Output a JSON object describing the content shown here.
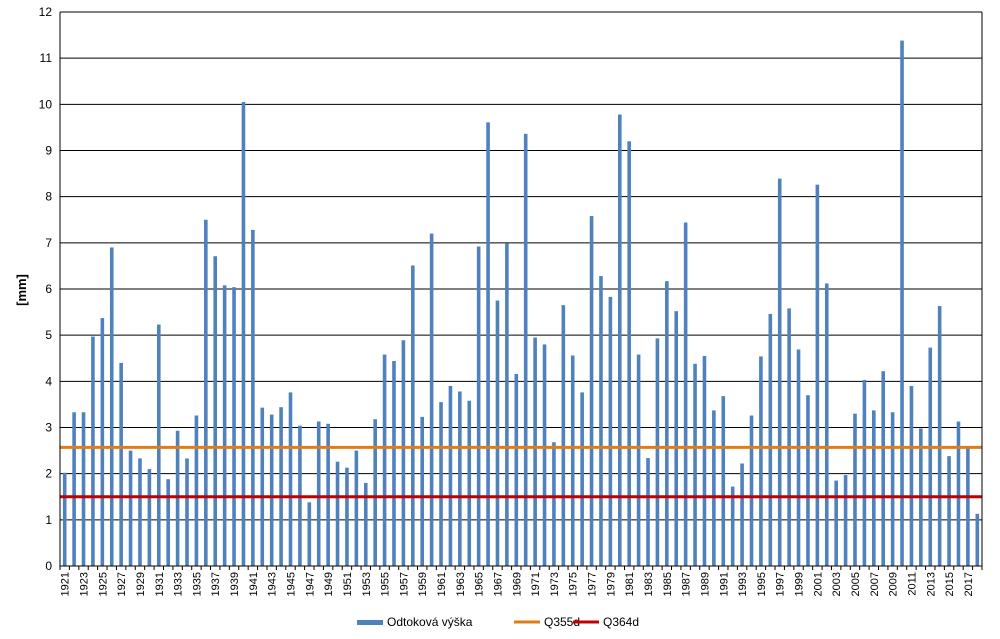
{
  "chart_data": {
    "type": "bar",
    "ylabel": "[mm]",
    "ylim": [
      0,
      12
    ],
    "yticks": [
      0,
      1,
      2,
      3,
      4,
      5,
      6,
      7,
      8,
      9,
      10,
      11,
      12
    ],
    "grid": true,
    "legend_position": "bottom",
    "categories": [
      1921,
      1922,
      1923,
      1924,
      1925,
      1926,
      1927,
      1928,
      1929,
      1930,
      1931,
      1932,
      1933,
      1934,
      1935,
      1936,
      1937,
      1938,
      1939,
      1940,
      1941,
      1942,
      1943,
      1944,
      1945,
      1946,
      1947,
      1948,
      1949,
      1950,
      1951,
      1952,
      1953,
      1954,
      1955,
      1956,
      1957,
      1958,
      1959,
      1960,
      1961,
      1962,
      1963,
      1964,
      1965,
      1966,
      1967,
      1968,
      1969,
      1970,
      1971,
      1972,
      1973,
      1974,
      1975,
      1976,
      1977,
      1978,
      1979,
      1980,
      1981,
      1982,
      1983,
      1984,
      1985,
      1986,
      1987,
      1988,
      1989,
      1990,
      1991,
      1992,
      1993,
      1994,
      1995,
      1996,
      1997,
      1998,
      1999,
      2000,
      2001,
      2002,
      2003,
      2004,
      2005,
      2006,
      2007,
      2008,
      2009,
      2010,
      2011,
      2012,
      2013,
      2014,
      2015,
      2016,
      2017,
      2018
    ],
    "tick_labels": [
      "1921",
      "1923",
      "1925",
      "1927",
      "1929",
      "1931",
      "1933",
      "1935",
      "1937",
      "1939",
      "1941",
      "1943",
      "1945",
      "1947",
      "1949",
      "1951",
      "1953",
      "1955",
      "1957",
      "1959",
      "1961",
      "1963",
      "1965",
      "1967",
      "1969",
      "1971",
      "1973",
      "1975",
      "1977",
      "1979",
      "1981",
      "1983",
      "1985",
      "1987",
      "1989",
      "1991",
      "1993",
      "1995",
      "1997",
      "1999",
      "2001",
      "2003",
      "2005",
      "2007",
      "2009",
      "2011",
      "2013",
      "2015",
      "2017"
    ],
    "series": [
      {
        "name": "Odtoková výška",
        "color": "#4f81bd",
        "values": [
          2.02,
          3.33,
          3.33,
          4.97,
          5.37,
          6.9,
          4.4,
          2.5,
          2.33,
          2.1,
          5.23,
          1.88,
          2.93,
          2.33,
          3.26,
          7.5,
          6.71,
          6.08,
          6.04,
          10.05,
          7.28,
          3.43,
          3.28,
          3.44,
          3.76,
          3.04,
          1.38,
          3.13,
          3.08,
          2.26,
          2.13,
          2.5,
          1.8,
          3.18,
          4.58,
          4.44,
          4.89,
          6.51,
          3.23,
          7.2,
          3.55,
          3.9,
          3.78,
          3.58,
          6.92,
          9.61,
          5.75,
          6.99,
          4.16,
          9.36,
          4.95,
          4.8,
          2.68,
          5.65,
          4.56,
          3.76,
          7.58,
          6.28,
          5.83,
          9.78,
          9.2,
          4.58,
          2.34,
          4.93,
          6.17,
          5.52,
          7.44,
          4.38,
          4.55,
          3.37,
          3.68,
          1.72,
          2.22,
          3.26,
          4.54,
          5.46,
          8.39,
          5.58,
          4.69,
          3.7,
          8.26,
          6.12,
          1.85,
          1.97,
          3.3,
          4.03,
          3.37,
          4.22,
          3.33,
          11.38,
          3.9,
          2.98,
          4.73,
          5.63,
          2.38,
          3.13,
          2.58,
          1.13
        ]
      }
    ],
    "reference_lines": [
      {
        "name": "Q355d",
        "value": 2.57,
        "color": "#e07b1a"
      },
      {
        "name": "Q364d",
        "value": 1.5,
        "color": "#c00000"
      }
    ]
  }
}
